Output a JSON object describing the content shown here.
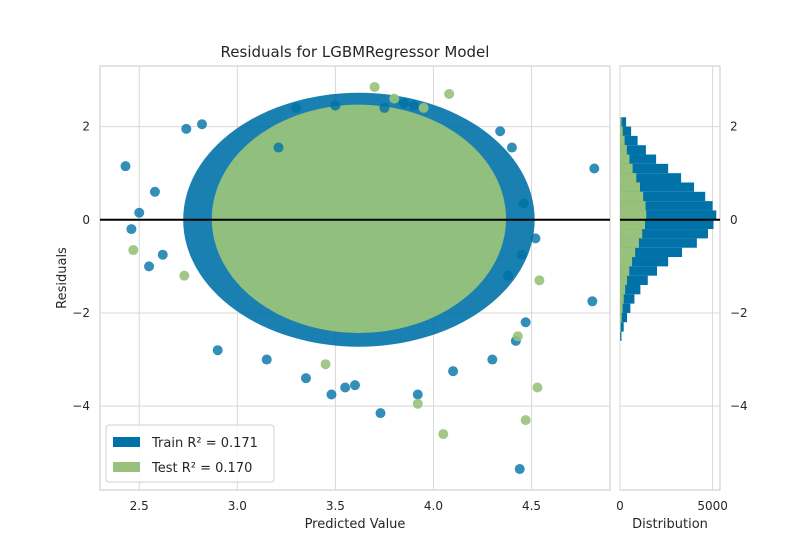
{
  "colors": {
    "train": "#0072a8",
    "test": "#98c27b",
    "hline": "#000000",
    "grid": "#d8d8d8",
    "axis": "#c8c8c8"
  },
  "chart_data": [
    {
      "type": "scatter",
      "title": "Residuals for LGBMRegressor Model",
      "xlabel": "Predicted Value",
      "ylabel": "Residuals",
      "xlim": [
        2.3,
        4.9
      ],
      "ylim": [
        -5.8,
        3.3
      ],
      "xticks": [
        2.5,
        3.0,
        3.5,
        4.0,
        4.5
      ],
      "xtick_labels": [
        "2.5",
        "3.0",
        "3.5",
        "4.0",
        "4.5"
      ],
      "yticks": [
        2,
        0,
        -2,
        -4
      ],
      "ytick_labels": [
        "2",
        "0",
        "−2",
        "−4"
      ],
      "grid": true,
      "reference_line_y": 0,
      "legend_location": "lower-left",
      "series": [
        {
          "name": "Train",
          "legend_text": "Train R² = 0.171",
          "r2": 0.171,
          "center": [
            3.62,
            0.0
          ],
          "points": [
            [
              4.82,
              1.1
            ],
            [
              4.81,
              -1.75
            ],
            [
              4.44,
              -5.35
            ],
            [
              3.73,
              -4.15
            ],
            [
              4.52,
              -0.4
            ],
            [
              4.42,
              -2.6
            ],
            [
              2.43,
              1.15
            ],
            [
              2.5,
              0.15
            ],
            [
              2.46,
              -0.2
            ],
            [
              2.74,
              1.95
            ],
            [
              2.82,
              2.05
            ],
            [
              3.5,
              2.45
            ],
            [
              3.3,
              2.4
            ],
            [
              3.9,
              2.45
            ],
            [
              3.21,
              1.55
            ],
            [
              2.9,
              -2.8
            ],
            [
              3.15,
              -3.0
            ],
            [
              3.35,
              -3.4
            ],
            [
              3.6,
              -3.55
            ],
            [
              3.92,
              -3.75
            ],
            [
              4.1,
              -3.25
            ],
            [
              4.3,
              -3.0
            ],
            [
              4.38,
              -1.2
            ],
            [
              4.45,
              -0.75
            ],
            [
              4.46,
              0.35
            ],
            [
              4.4,
              1.55
            ],
            [
              4.34,
              1.9
            ],
            [
              3.55,
              -3.6
            ],
            [
              3.48,
              -3.75
            ],
            [
              2.62,
              -0.75
            ],
            [
              2.58,
              0.6
            ],
            [
              2.55,
              -1.0
            ],
            [
              4.47,
              -2.2
            ],
            [
              3.85,
              2.5
            ],
            [
              3.75,
              2.4
            ]
          ]
        },
        {
          "name": "Test",
          "legend_text": "Test R² = 0.170",
          "r2": 0.17,
          "center": [
            3.62,
            0.0
          ],
          "points": [
            [
              4.47,
              -4.3
            ],
            [
              4.53,
              -3.6
            ],
            [
              4.05,
              -4.6
            ],
            [
              3.92,
              -3.95
            ],
            [
              3.7,
              2.85
            ],
            [
              4.08,
              2.7
            ],
            [
              4.54,
              -1.3
            ],
            [
              2.47,
              -0.65
            ],
            [
              3.45,
              -3.1
            ],
            [
              3.8,
              2.6
            ],
            [
              3.95,
              2.4
            ],
            [
              2.73,
              -1.2
            ],
            [
              4.43,
              -2.5
            ]
          ]
        }
      ]
    },
    {
      "type": "bar",
      "orientation": "horizontal",
      "title": "",
      "xlabel": "Distribution",
      "ylabel": "",
      "xlim": [
        0,
        5400
      ],
      "ylim": [
        -5.8,
        3.3
      ],
      "xticks": [
        0,
        5000
      ],
      "xtick_labels": [
        "0",
        "5000"
      ],
      "yticks": [
        2,
        0,
        -2,
        -4
      ],
      "ytick_labels": [
        "2",
        "0",
        "−2",
        "−4"
      ],
      "bin_edges": [
        -2.6,
        -2.4,
        -2.2,
        -2.0,
        -1.8,
        -1.6,
        -1.4,
        -1.2,
        -1.0,
        -0.8,
        -0.6,
        -0.4,
        -0.2,
        0.0,
        0.2,
        0.4,
        0.6,
        0.8,
        1.0,
        1.2,
        1.4,
        1.6,
        1.8,
        2.0,
        2.2
      ],
      "series": [
        {
          "name": "Train",
          "values": [
            80,
            200,
            380,
            560,
            780,
            1100,
            1500,
            2000,
            2600,
            3350,
            4150,
            4750,
            5050,
            5200,
            5000,
            4600,
            4000,
            3300,
            2600,
            1950,
            1400,
            950,
            600,
            330
          ]
        },
        {
          "name": "Test",
          "values": [
            20,
            50,
            95,
            140,
            200,
            280,
            380,
            500,
            650,
            820,
            1020,
            1200,
            1350,
            1420,
            1380,
            1250,
            1080,
            880,
            680,
            510,
            370,
            250,
            150,
            80
          ]
        }
      ]
    }
  ]
}
